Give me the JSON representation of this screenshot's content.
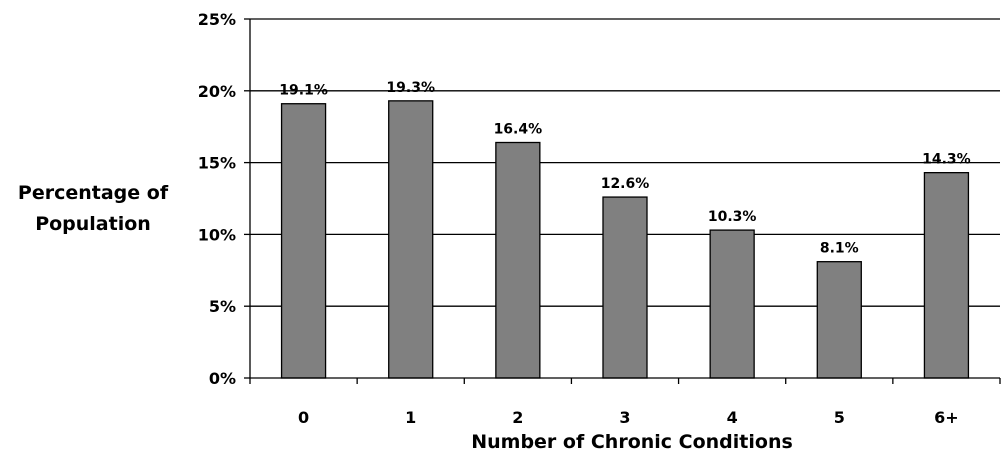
{
  "chart_data": {
    "type": "bar",
    "categories": [
      "0",
      "1",
      "2",
      "3",
      "4",
      "5",
      "6+"
    ],
    "values": [
      19.1,
      19.3,
      16.4,
      12.6,
      10.3,
      8.1,
      14.3
    ],
    "data_labels": [
      "19.1%",
      "19.3%",
      "16.4%",
      "12.6%",
      "10.3%",
      "8.1%",
      "14.3%"
    ],
    "xlabel": "Number of Chronic Conditions",
    "ylabel_lines": [
      "Percentage of",
      "Population"
    ],
    "ylim": [
      0,
      25
    ],
    "yticks": [
      0,
      5,
      10,
      15,
      20,
      25
    ],
    "ytick_labels": [
      "0%",
      "5%",
      "10%",
      "15%",
      "20%",
      "25%"
    ],
    "grid": true,
    "legend": "none",
    "colors": {
      "bar": "#808080",
      "bar_stroke": "#000000",
      "grid": "#000000"
    }
  }
}
